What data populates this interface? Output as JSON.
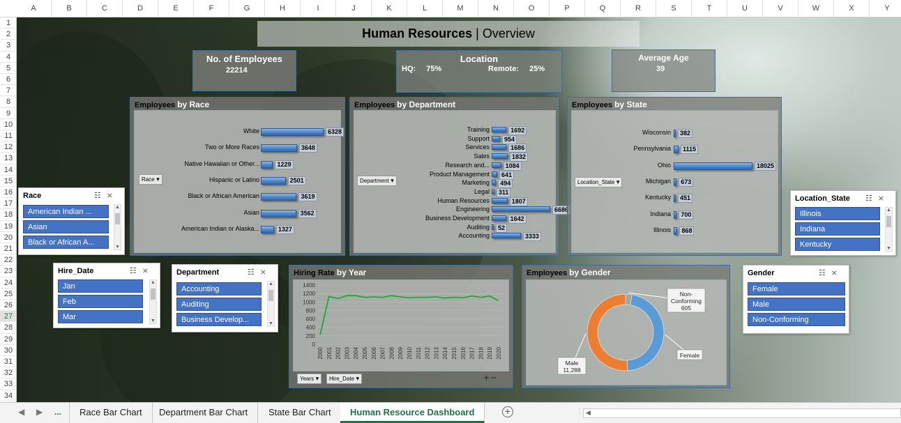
{
  "columns": [
    "A",
    "B",
    "C",
    "D",
    "E",
    "F",
    "G",
    "H",
    "I",
    "J",
    "K",
    "L",
    "M",
    "N",
    "O",
    "P",
    "Q",
    "R",
    "S",
    "T",
    "U",
    "V",
    "W",
    "X",
    "Y"
  ],
  "rows": [
    "1",
    "2",
    "3",
    "4",
    "5",
    "6",
    "7",
    "8",
    "9",
    "10",
    "11",
    "12",
    "13",
    "14",
    "15",
    "16",
    "17",
    "18",
    "19",
    "20",
    "21",
    "22",
    "23",
    "24",
    "25",
    "26",
    "27",
    "28",
    "29",
    "30",
    "31",
    "32",
    "33",
    "34"
  ],
  "selected_row": "27",
  "title": {
    "bold": "Human Resources",
    "separator": " | ",
    "rest": "Overview"
  },
  "kpis": {
    "employees": {
      "label": "No. of Employees",
      "value": "22214"
    },
    "location": {
      "label": "Location",
      "hq_label": "HQ:",
      "hq_value": "75%",
      "remote_label": "Remote:",
      "remote_value": "25%"
    },
    "age": {
      "label": "Average Age",
      "value": "39"
    }
  },
  "chart_data": [
    {
      "type": "bar",
      "title_prefix": "Employees",
      "title_suffix": "by Race",
      "filter": "Race",
      "categories": [
        "White",
        "Two or More Races",
        "Native Hawaiian or Other...",
        "Hispanic or Latino",
        "Black or African American",
        "Asian",
        "American Indian or Alaska..."
      ],
      "values": [
        6328,
        3648,
        1229,
        2501,
        3619,
        3562,
        1327
      ]
    },
    {
      "type": "bar",
      "title_prefix": "Employees",
      "title_suffix": "by Department",
      "filter": "Department",
      "categories": [
        "Training",
        "Support",
        "Services",
        "Sales",
        "Research and...",
        "Product Management",
        "Marketing",
        "Legal",
        "Human Resources",
        "Engineering",
        "Business Development",
        "Auditing",
        "Accounting"
      ],
      "values": [
        1692,
        954,
        1686,
        1832,
        1084,
        641,
        494,
        311,
        1807,
        6686,
        1642,
        52,
        3333
      ]
    },
    {
      "type": "bar",
      "title_prefix": "Employees",
      "title_suffix": "by State",
      "filter": "Location_State",
      "categories": [
        "Wisconsin",
        "Pennsylvania",
        "Ohio",
        "Michigan",
        "Kentucky",
        "Indiana",
        "Illinois"
      ],
      "values": [
        382,
        1115,
        18025,
        673,
        451,
        700,
        868
      ]
    },
    {
      "type": "line",
      "title_prefix": "Hiring Rate",
      "title_suffix": "by Year",
      "x": [
        "2000",
        "2001",
        "2002",
        "2003",
        "2004",
        "2005",
        "2006",
        "2007",
        "2008",
        "2009",
        "2010",
        "2011",
        "2012",
        "2013",
        "2014",
        "2015",
        "2016",
        "2017",
        "2018",
        "2019",
        "2020"
      ],
      "values": [
        220,
        1130,
        1080,
        1150,
        1150,
        1110,
        1120,
        1110,
        1150,
        1120,
        1100,
        1110,
        1110,
        1120,
        1090,
        1110,
        1100,
        1140,
        1110,
        1140,
        1030
      ],
      "yticks": [
        "1400",
        "1200",
        "1000",
        "800",
        "600",
        "400",
        "200",
        "0"
      ],
      "ylim": [
        0,
        1400
      ],
      "filters": [
        "Years",
        "Hire_Date"
      ],
      "color": "#22a83a"
    },
    {
      "type": "pie",
      "title_prefix": "Employees",
      "title_suffix": "by Gender",
      "slices": [
        {
          "label": "Female",
          "value": 10321,
          "color": "#5b9bd5",
          "display": ""
        },
        {
          "label": "Male",
          "value": 11288,
          "color": "#ed7d31",
          "display": "11,288"
        },
        {
          "label": "Non-Conforming",
          "value": 605,
          "color": "#a5a5a5",
          "display": "605"
        }
      ]
    }
  ],
  "slicers": {
    "race": {
      "header": "Race",
      "items": [
        "American Indian ...",
        "Asian",
        "Black or African A..."
      ]
    },
    "location_state": {
      "header": "Location_State",
      "items": [
        "Illinois",
        "Indiana",
        "Kentucky"
      ]
    },
    "hire_date": {
      "header": "Hire_Date",
      "items": [
        "Jan",
        "Feb",
        "Mar"
      ]
    },
    "department": {
      "header": "Department",
      "items": [
        "Accounting",
        "Auditing",
        "Business Develop..."
      ]
    },
    "gender": {
      "header": "Gender",
      "items": [
        "Female",
        "Male",
        "Non-Conforming"
      ]
    }
  },
  "tabs": {
    "ellipsis": "...",
    "items": [
      "Race Bar Chart",
      "Department Bar Chart",
      "State Bar Chart",
      "Human Resource Dashboard"
    ],
    "active": "Human Resource Dashboard"
  }
}
